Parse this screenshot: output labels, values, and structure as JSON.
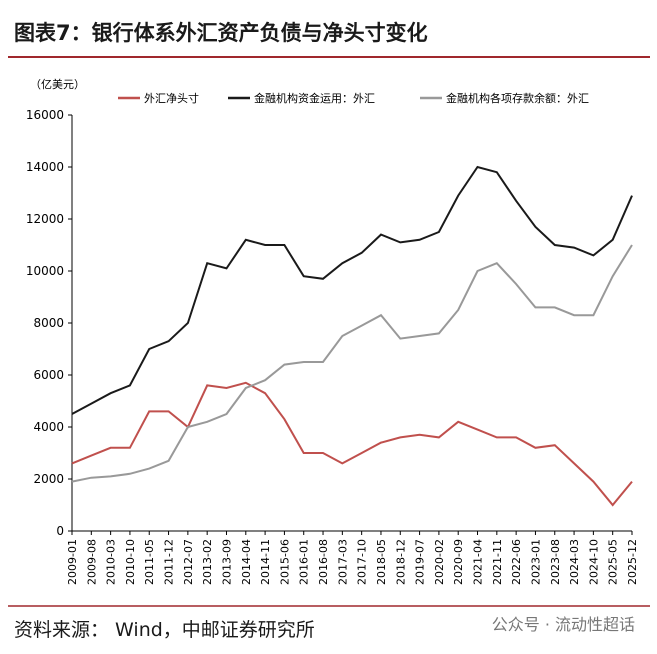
{
  "chart_data": {
    "type": "line",
    "title": "图表7：银行体系外汇资产负债与净头寸变化",
    "y_label": "（亿美元）",
    "source": "资料来源： Wind，中邮证券研究所",
    "watermark": "公众号 · 流动性超话",
    "categories": [
      "2009-01",
      "2009-08",
      "2010-03",
      "2010-10",
      "2011-05",
      "2011-12",
      "2012-07",
      "2013-02",
      "2013-09",
      "2014-04",
      "2014-11",
      "2015-06",
      "2016-01",
      "2016-08",
      "2017-03",
      "2017-10",
      "2018-05",
      "2018-12",
      "2019-07",
      "2020-02",
      "2020-09",
      "2021-04",
      "2021-11",
      "2022-06",
      "2023-01",
      "2023-08",
      "2024-03",
      "2024-10",
      "2025-05",
      "2025-12"
    ],
    "series": [
      {
        "name": "外汇净头寸",
        "color": "#c0504d",
        "values": [
          2600,
          2900,
          3200,
          3200,
          4600,
          4600,
          4000,
          5600,
          5500,
          5700,
          5300,
          4300,
          3000,
          3000,
          2600,
          3000,
          3400,
          3600,
          3700,
          3600,
          4200,
          3900,
          3600,
          3600,
          3200,
          3300,
          2600,
          1900,
          1000,
          1900
        ]
      },
      {
        "name": "金融机构资金运用：外汇",
        "color": "#1a1a1a",
        "values": [
          4500,
          4900,
          5300,
          5600,
          7000,
          7300,
          8000,
          10300,
          10100,
          11200,
          11000,
          11000,
          9800,
          9700,
          10300,
          10700,
          11400,
          11100,
          11200,
          11500,
          12900,
          14000,
          13800,
          12700,
          11700,
          11000,
          10900,
          10600,
          11200,
          12900
        ]
      },
      {
        "name": "金融机构各项存款余额：外汇",
        "color": "#999999",
        "values": [
          1900,
          2050,
          2100,
          2200,
          2400,
          2700,
          4000,
          4200,
          4500,
          5500,
          5800,
          6400,
          6500,
          6500,
          7500,
          7900,
          8300,
          7400,
          7500,
          7600,
          8500,
          10000,
          10300,
          9500,
          8600,
          8600,
          8300,
          8300,
          9800,
          11000
        ]
      }
    ],
    "ylim": [
      0,
      16000
    ],
    "yticks": [
      0,
      2000,
      4000,
      6000,
      8000,
      10000,
      12000,
      14000,
      16000
    ]
  }
}
